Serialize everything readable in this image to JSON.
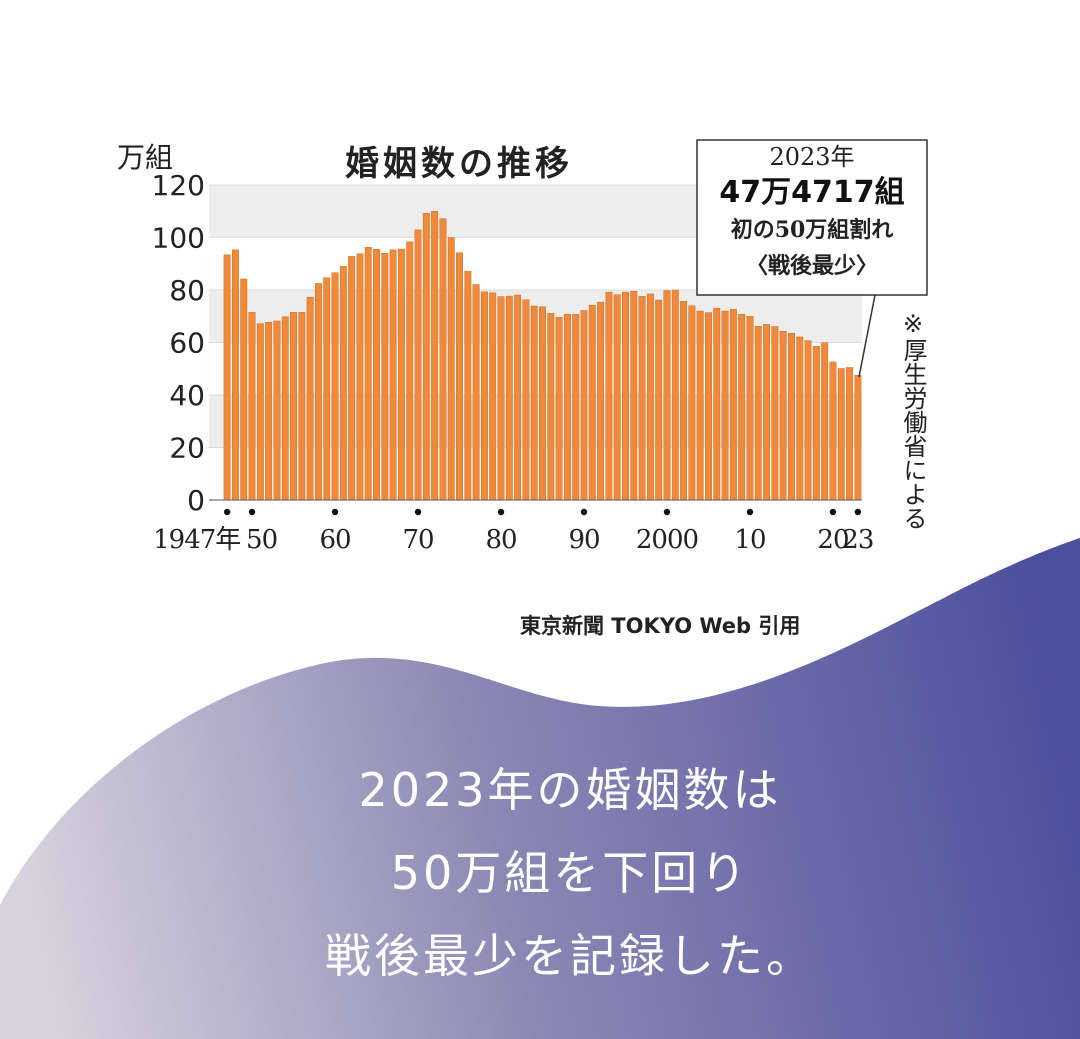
{
  "chart_data": {
    "type": "bar",
    "title": "婚姻数の推移",
    "unit_label": "万組",
    "ylim": [
      0,
      120
    ],
    "yticks": [
      0,
      20,
      40,
      60,
      80,
      100,
      120
    ],
    "grid": "horizontal bands",
    "x_tick_labels": [
      {
        "year": 1947,
        "label": "1947年"
      },
      {
        "year": 1950,
        "label": "50"
      },
      {
        "year": 1960,
        "label": "60"
      },
      {
        "year": 1970,
        "label": "70"
      },
      {
        "year": 1980,
        "label": "80"
      },
      {
        "year": 1990,
        "label": "90"
      },
      {
        "year": 2000,
        "label": "2000"
      },
      {
        "year": 2010,
        "label": "10"
      },
      {
        "year": 2020,
        "label": "20"
      },
      {
        "year": 2023,
        "label": "23"
      }
    ],
    "x": [
      1947,
      1948,
      1949,
      1950,
      1951,
      1952,
      1953,
      1954,
      1955,
      1956,
      1957,
      1958,
      1959,
      1960,
      1961,
      1962,
      1963,
      1964,
      1965,
      1966,
      1967,
      1968,
      1969,
      1970,
      1971,
      1972,
      1973,
      1974,
      1975,
      1976,
      1977,
      1978,
      1979,
      1980,
      1981,
      1982,
      1983,
      1984,
      1985,
      1986,
      1987,
      1988,
      1989,
      1990,
      1991,
      1992,
      1993,
      1994,
      1995,
      1996,
      1997,
      1998,
      1999,
      2000,
      2001,
      2002,
      2003,
      2004,
      2005,
      2006,
      2007,
      2008,
      2009,
      2010,
      2011,
      2012,
      2013,
      2014,
      2015,
      2016,
      2017,
      2018,
      2019,
      2020,
      2021,
      2022,
      2023
    ],
    "series": [
      {
        "color": "#f08a3a",
        "values": [
          93.4,
          95.3,
          84.2,
          71.5,
          67.2,
          67.7,
          68.2,
          69.8,
          71.5,
          71.5,
          77.3,
          82.5,
          84.7,
          86.6,
          89.0,
          92.8,
          93.8,
          96.3,
          95.5,
          94.0,
          95.3,
          95.6,
          98.4,
          102.9,
          109.2,
          110.0,
          107.2,
          100.0,
          94.2,
          87.2,
          82.1,
          79.3,
          78.9,
          77.5,
          77.7,
          78.1,
          76.3,
          73.9,
          73.6,
          71.1,
          69.6,
          70.8,
          70.8,
          72.2,
          74.2,
          75.4,
          79.2,
          78.2,
          79.2,
          79.5,
          77.6,
          78.5,
          76.2,
          79.8,
          80.0,
          75.7,
          74.0,
          72.0,
          71.4,
          73.1,
          72.0,
          72.6,
          70.8,
          70.0,
          66.2,
          66.9,
          66.1,
          64.3,
          63.5,
          62.1,
          60.7,
          58.6,
          59.9,
          52.6,
          50.1,
          50.5,
          47.5
        ]
      }
    ],
    "annotation": {
      "year_line": "2023年",
      "value_line": "47万4717組",
      "note_line": "初の50万組割れ",
      "tag_line": "〈戦後最少〉"
    },
    "source_note": "※厚生労働省による"
  },
  "credit": "東京新聞 TOKYO Web 引用",
  "caption": {
    "line1": "2023年の婚姻数は",
    "line2": "50万組を下回り",
    "line3": "戦後最少を記録した。"
  },
  "colors": {
    "bar": "#f08a3a",
    "bar_edge": "#c0601c",
    "grid_band": "#ededed",
    "wave_start": "#d7d3de",
    "wave_end": "#4c4f9e"
  }
}
